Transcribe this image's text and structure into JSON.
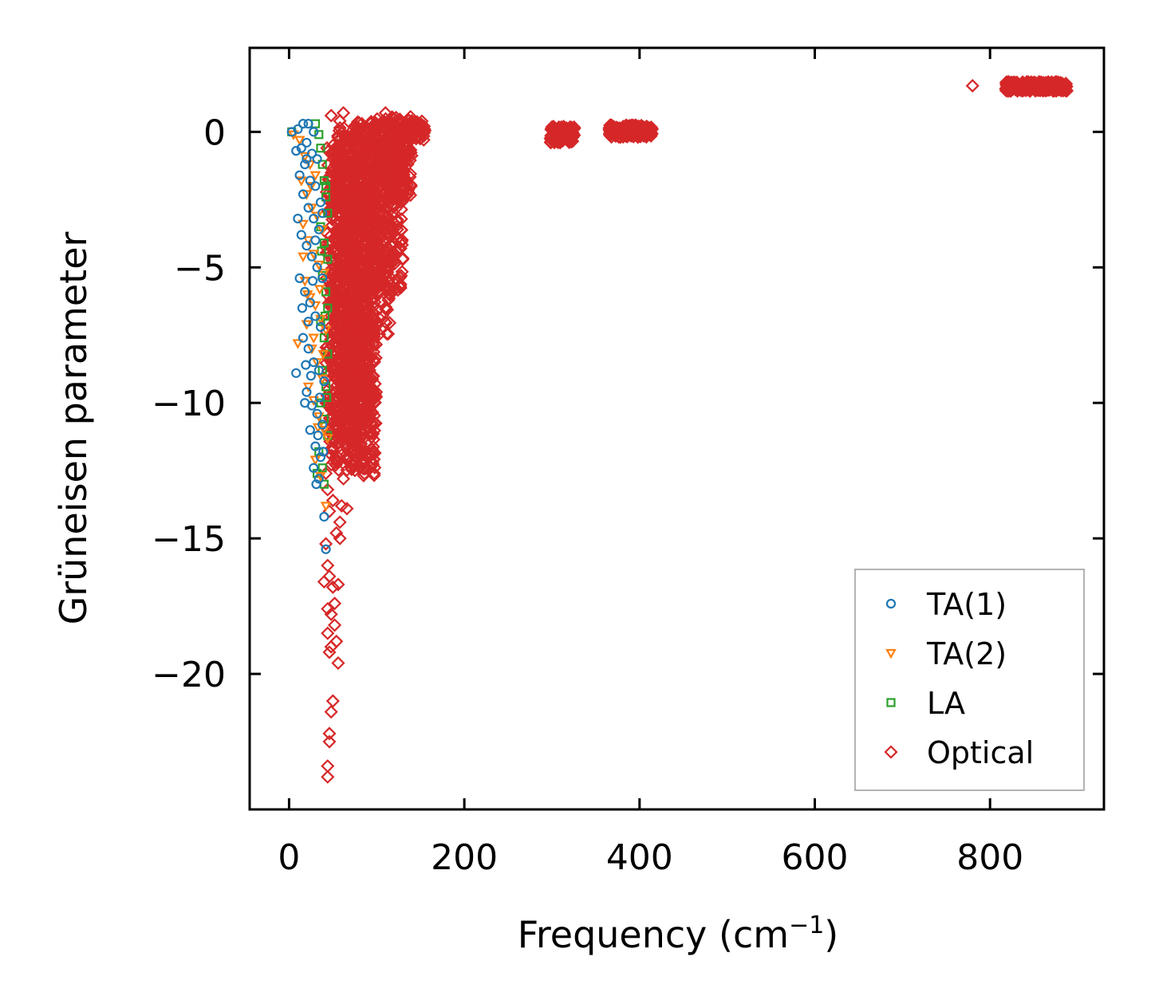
{
  "chart_data": {
    "type": "scatter",
    "title": "",
    "xlabel": "Frequency (cm",
    "xlabel_sup": "−1",
    "xlabel_close": ")",
    "ylabel": "Grüneisen parameter",
    "xlim": [
      -45,
      930
    ],
    "ylim": [
      -25,
      3.1
    ],
    "xticks": [
      0,
      200,
      400,
      600,
      800
    ],
    "xtick_labels": [
      "0",
      "200",
      "400",
      "600",
      "800"
    ],
    "yticks": [
      0,
      -5,
      -10,
      -15,
      -20
    ],
    "ytick_labels": [
      "0",
      "−5",
      "−10",
      "−15",
      "−20"
    ],
    "grid": false,
    "legend_position": "bottom-right",
    "series": [
      {
        "name": "TA(1)",
        "marker": "circle",
        "color": "#1f77b4",
        "points": [
          [
            3,
            0.0
          ],
          [
            10,
            0.1
          ],
          [
            16,
            0.3
          ],
          [
            22,
            0.3
          ],
          [
            28,
            0.0
          ],
          [
            8,
            -0.7
          ],
          [
            14,
            -0.6
          ],
          [
            20,
            -0.4
          ],
          [
            26,
            -0.8
          ],
          [
            32,
            -1.0
          ],
          [
            12,
            -1.6
          ],
          [
            18,
            -1.2
          ],
          [
            24,
            -1.8
          ],
          [
            30,
            -2.0
          ],
          [
            36,
            -2.6
          ],
          [
            16,
            -2.3
          ],
          [
            22,
            -2.8
          ],
          [
            28,
            -3.2
          ],
          [
            34,
            -3.6
          ],
          [
            10,
            -3.2
          ],
          [
            14,
            -3.8
          ],
          [
            20,
            -4.2
          ],
          [
            26,
            -4.6
          ],
          [
            32,
            -5.0
          ],
          [
            38,
            -5.4
          ],
          [
            12,
            -5.4
          ],
          [
            18,
            -5.9
          ],
          [
            24,
            -6.3
          ],
          [
            30,
            -6.8
          ],
          [
            36,
            -7.2
          ],
          [
            16,
            -7.6
          ],
          [
            22,
            -8.0
          ],
          [
            28,
            -8.5
          ],
          [
            34,
            -8.8
          ],
          [
            40,
            -9.2
          ],
          [
            8,
            -8.9
          ],
          [
            20,
            -9.6
          ],
          [
            26,
            -10.1
          ],
          [
            32,
            -10.4
          ],
          [
            38,
            -10.8
          ],
          [
            24,
            -11.0
          ],
          [
            30,
            -11.6
          ],
          [
            36,
            -12.0
          ],
          [
            28,
            -12.4
          ],
          [
            34,
            -12.8
          ],
          [
            40,
            -14.2
          ],
          [
            42,
            -15.4
          ],
          [
            25,
            -9.0
          ],
          [
            18,
            -10.0
          ],
          [
            33,
            -11.2
          ],
          [
            20,
            -1.0
          ],
          [
            30,
            -4.0
          ],
          [
            15,
            -6.5
          ],
          [
            35,
            -9.8
          ],
          [
            22,
            -7.0
          ],
          [
            38,
            -3.0
          ],
          [
            27,
            -5.5
          ],
          [
            19,
            -8.6
          ],
          [
            31,
            -13.0
          ],
          [
            39,
            -11.8
          ]
        ]
      },
      {
        "name": "TA(2)",
        "marker": "triangle-down",
        "color": "#ff7f0e",
        "points": [
          [
            5,
            -0.1
          ],
          [
            12,
            -0.3
          ],
          [
            18,
            -0.9
          ],
          [
            24,
            -1.2
          ],
          [
            30,
            -1.6
          ],
          [
            14,
            -1.8
          ],
          [
            20,
            -2.3
          ],
          [
            26,
            -2.8
          ],
          [
            32,
            -3.1
          ],
          [
            38,
            -3.6
          ],
          [
            16,
            -3.4
          ],
          [
            22,
            -4.0
          ],
          [
            28,
            -4.5
          ],
          [
            34,
            -4.9
          ],
          [
            40,
            -5.2
          ],
          [
            18,
            -5.5
          ],
          [
            24,
            -6.1
          ],
          [
            30,
            -6.4
          ],
          [
            36,
            -6.9
          ],
          [
            42,
            -7.3
          ],
          [
            10,
            -7.8
          ],
          [
            20,
            -7.1
          ],
          [
            26,
            -8.0
          ],
          [
            32,
            -8.5
          ],
          [
            38,
            -9.1
          ],
          [
            22,
            -9.4
          ],
          [
            28,
            -9.9
          ],
          [
            34,
            -10.5
          ],
          [
            40,
            -11.0
          ],
          [
            44,
            -11.3
          ],
          [
            30,
            -12.1
          ],
          [
            36,
            -12.7
          ],
          [
            42,
            -13.8
          ],
          [
            16,
            -4.6
          ],
          [
            25,
            -2.0
          ],
          [
            35,
            -5.8
          ],
          [
            28,
            -7.6
          ],
          [
            33,
            -10.9
          ],
          [
            21,
            -6.0
          ],
          [
            39,
            -8.2
          ]
        ]
      },
      {
        "name": "LA",
        "marker": "square",
        "color": "#2ca02c",
        "points": [
          [
            3,
            0.0
          ],
          [
            30,
            0.3
          ],
          [
            34,
            -0.1
          ],
          [
            36,
            -0.6
          ],
          [
            38,
            -1.2
          ],
          [
            40,
            -1.8
          ],
          [
            42,
            -2.4
          ],
          [
            44,
            -3.0
          ],
          [
            36,
            -3.5
          ],
          [
            40,
            -4.1
          ],
          [
            44,
            -4.7
          ],
          [
            38,
            -5.3
          ],
          [
            42,
            -5.9
          ],
          [
            44,
            -6.5
          ],
          [
            36,
            -7.0
          ],
          [
            40,
            -7.6
          ],
          [
            44,
            -8.2
          ],
          [
            38,
            -8.8
          ],
          [
            42,
            -9.4
          ],
          [
            36,
            -10.0
          ],
          [
            40,
            -10.6
          ],
          [
            44,
            -11.2
          ],
          [
            34,
            -11.8
          ],
          [
            38,
            -12.4
          ],
          [
            40,
            -13.0
          ],
          [
            32,
            -12.6
          ],
          [
            42,
            -2.0
          ],
          [
            37,
            -4.4
          ],
          [
            41,
            -6.8
          ],
          [
            43,
            -9.8
          ]
        ]
      },
      {
        "name": "Optical",
        "marker": "diamond",
        "color": "#d62728",
        "clouds": [
          {
            "x_min": 42,
            "x_max": 70,
            "y_min": -11.5,
            "y_max": -0.5,
            "count": 340
          },
          {
            "x_min": 48,
            "x_max": 85,
            "y_min": -12.5,
            "y_max": 0.2,
            "count": 420
          },
          {
            "x_min": 55,
            "x_max": 100,
            "y_min": -10.8,
            "y_max": 0.2,
            "count": 420
          },
          {
            "x_min": 65,
            "x_max": 98,
            "y_min": -12.7,
            "y_max": -7.0,
            "count": 220
          },
          {
            "x_min": 70,
            "x_max": 115,
            "y_min": -7.5,
            "y_max": 0.4,
            "count": 380
          },
          {
            "x_min": 90,
            "x_max": 130,
            "y_min": -6.0,
            "y_max": 0.5,
            "count": 300
          },
          {
            "x_min": 110,
            "x_max": 140,
            "y_min": -2.5,
            "y_max": 0.6,
            "count": 160
          },
          {
            "x_min": 130,
            "x_max": 155,
            "y_min": -0.3,
            "y_max": 0.4,
            "count": 60
          },
          {
            "x_min": 298,
            "x_max": 326,
            "y_min": -0.4,
            "y_max": 0.2,
            "count": 120
          },
          {
            "x_min": 365,
            "x_max": 415,
            "y_min": -0.2,
            "y_max": 0.25,
            "count": 160
          },
          {
            "x_min": 818,
            "x_max": 888,
            "y_min": 1.5,
            "y_max": 1.85,
            "count": 240
          }
        ],
        "points": [
          [
            48,
            0.6
          ],
          [
            58,
            0.4
          ],
          [
            62,
            0.7
          ],
          [
            110,
            0.7
          ],
          [
            780,
            1.7
          ],
          [
            42,
            -12.6
          ],
          [
            44,
            -13.2
          ],
          [
            46,
            -14.0
          ],
          [
            50,
            -13.6
          ],
          [
            54,
            -14.8
          ],
          [
            58,
            -15.0
          ],
          [
            60,
            -13.8
          ],
          [
            66,
            -13.9
          ],
          [
            42,
            -15.2
          ],
          [
            44,
            -16.0
          ],
          [
            46,
            -16.4
          ],
          [
            50,
            -16.8
          ],
          [
            52,
            -17.4
          ],
          [
            56,
            -16.7
          ],
          [
            44,
            -17.6
          ],
          [
            48,
            -17.8
          ],
          [
            52,
            -18.2
          ],
          [
            44,
            -18.5
          ],
          [
            48,
            -19.0
          ],
          [
            54,
            -18.8
          ],
          [
            56,
            -19.6
          ],
          [
            46,
            -19.2
          ],
          [
            50,
            -21.0
          ],
          [
            48,
            -21.4
          ],
          [
            46,
            -22.2
          ],
          [
            46,
            -22.5
          ],
          [
            44,
            -23.4
          ],
          [
            44,
            -23.8
          ],
          [
            40,
            -16.6
          ],
          [
            62,
            -12.8
          ],
          [
            58,
            -14.4
          ]
        ]
      }
    ]
  }
}
